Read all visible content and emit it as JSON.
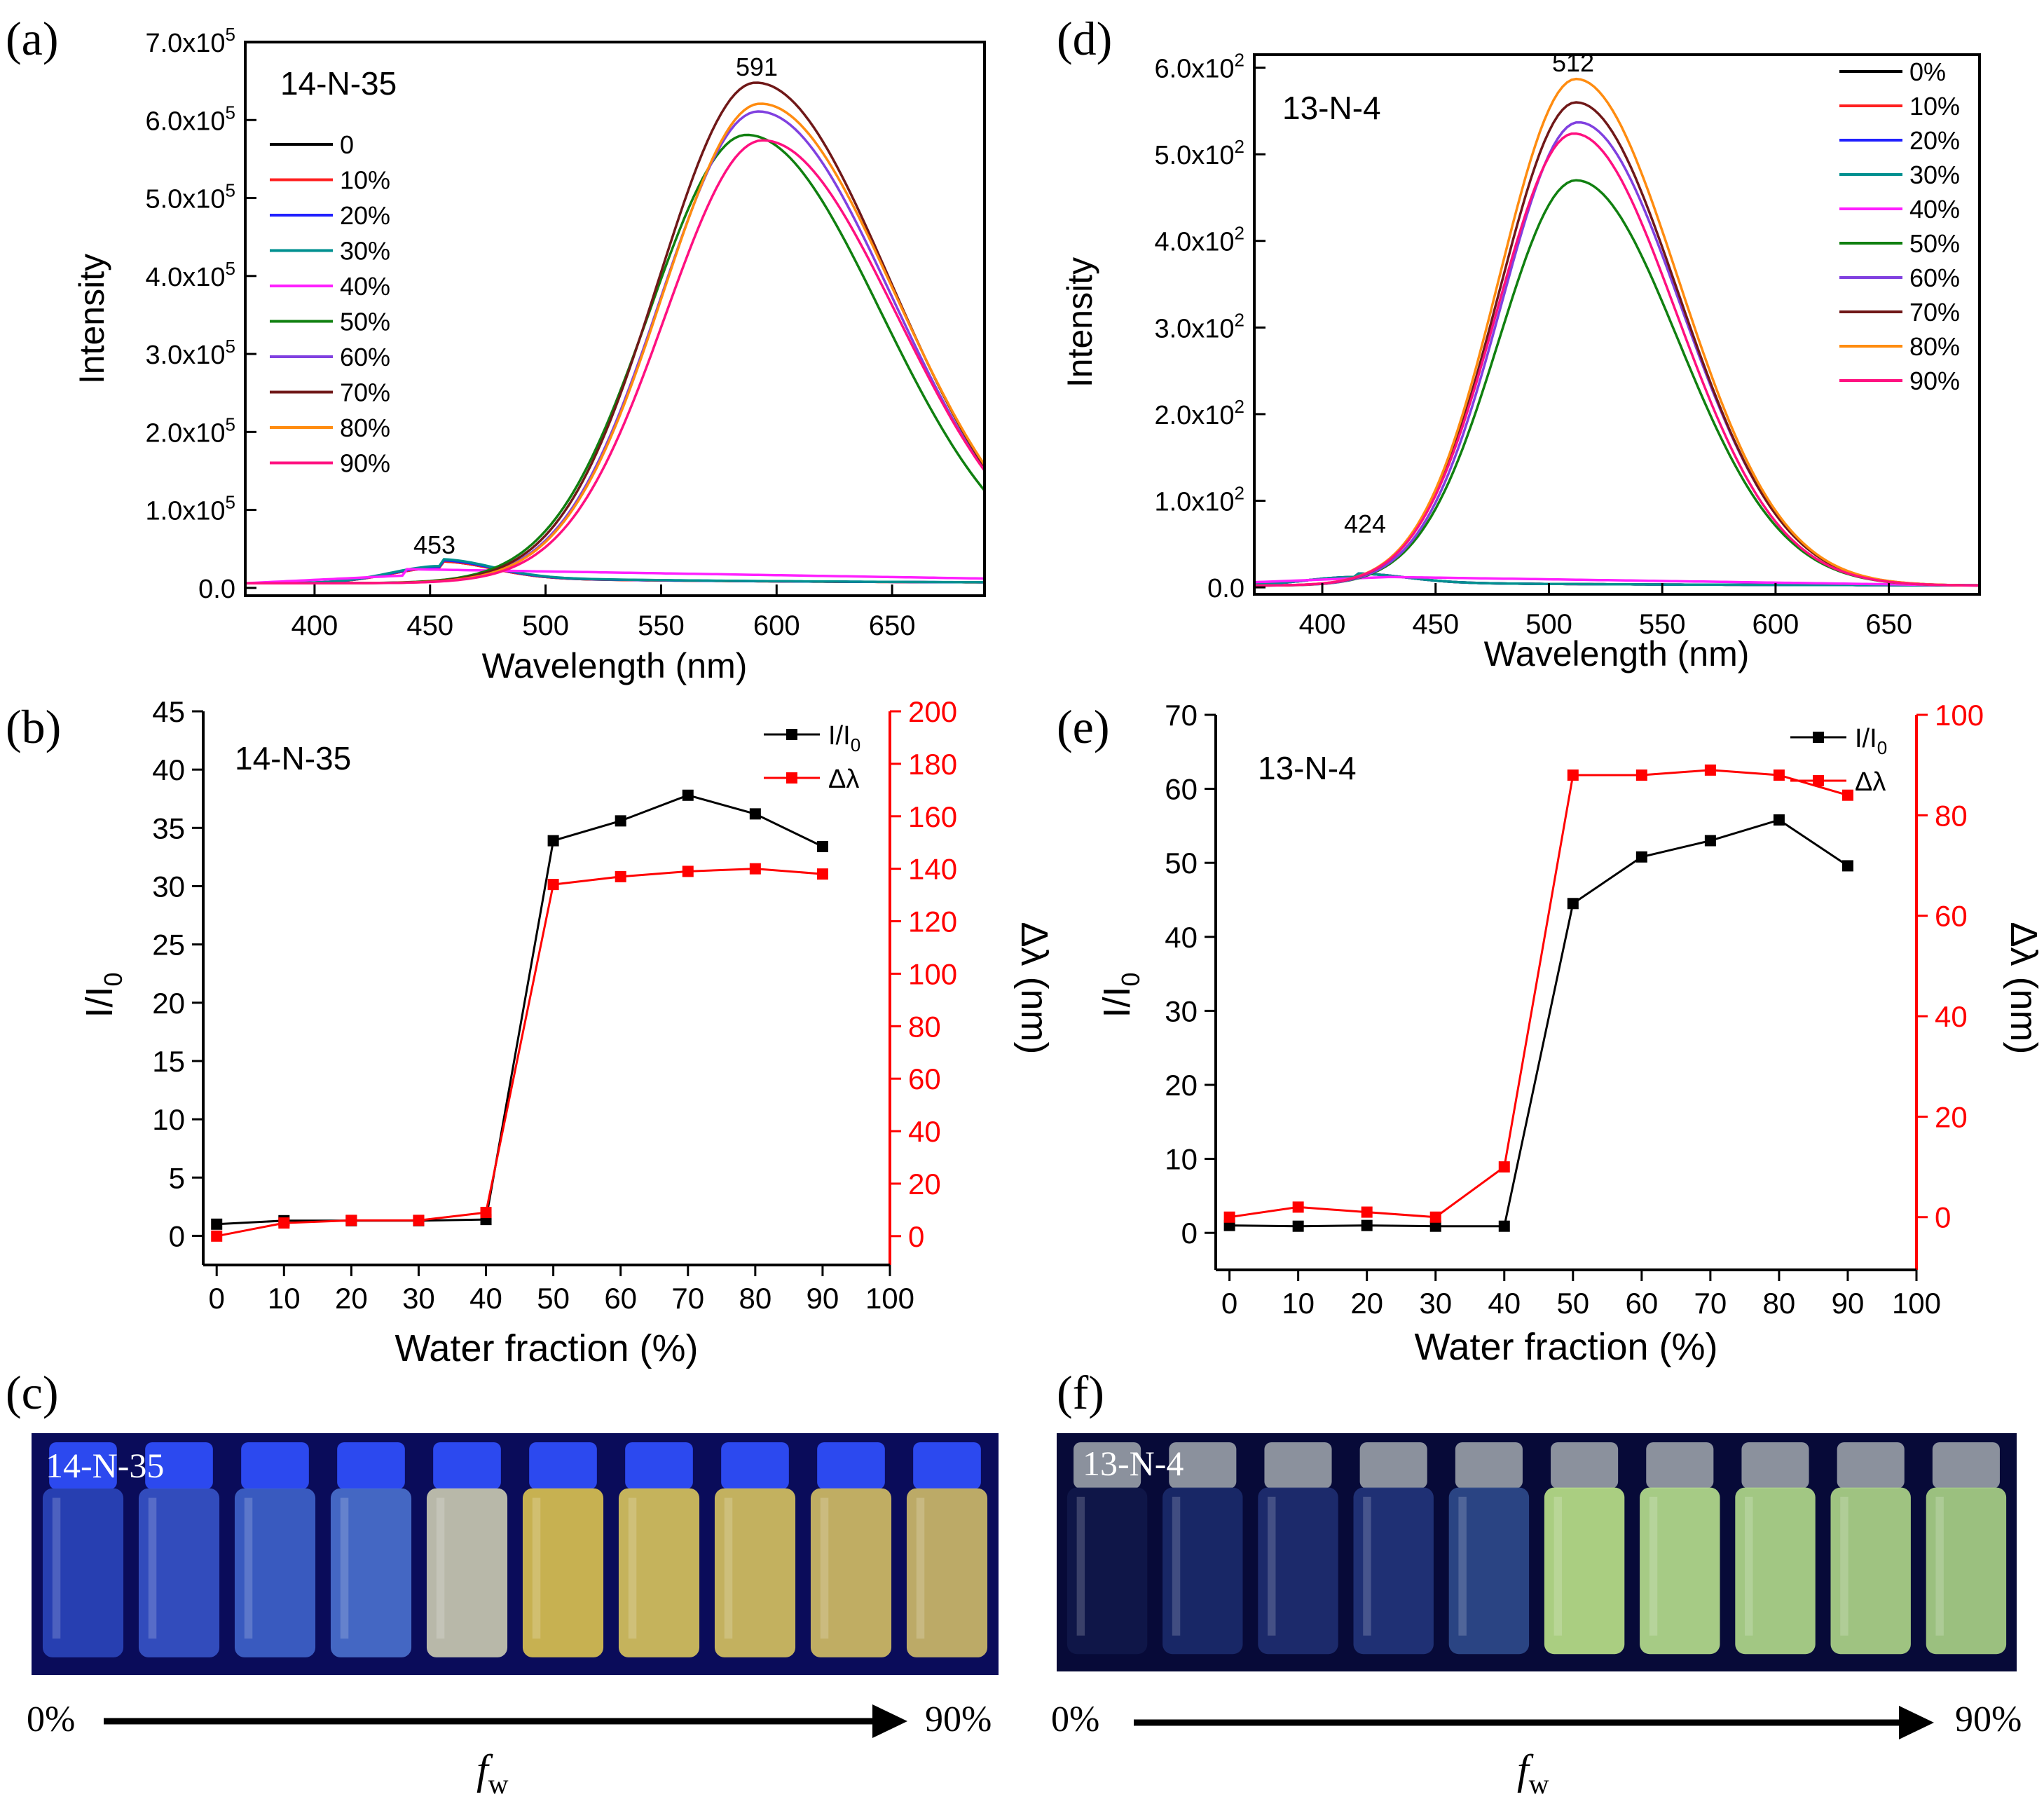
{
  "panel_labels": {
    "a": "(a)",
    "b": "(b)",
    "c": "(c)",
    "d": "(d)",
    "e": "(e)",
    "f": "(f)"
  },
  "chart_data": [
    {
      "id": "a",
      "type": "line",
      "sample": "14-N-35",
      "xlabel": "Wavelength (nm)",
      "ylabel": "Intensity",
      "xlim": [
        370,
        690
      ],
      "ylim": [
        -0.1,
        7.0
      ],
      "xticks": [
        400,
        450,
        500,
        550,
        600,
        650
      ],
      "yticks": [
        {
          "v": 0,
          "label": "0.0"
        },
        {
          "v": 1,
          "label": "1.0x10",
          "exp": "5"
        },
        {
          "v": 2,
          "label": "2.0x10",
          "exp": "5"
        },
        {
          "v": 3,
          "label": "3.0x10",
          "exp": "5"
        },
        {
          "v": 4,
          "label": "4.0x10",
          "exp": "5"
        },
        {
          "v": 5,
          "label": "5.0x10",
          "exp": "5"
        },
        {
          "v": 6,
          "label": "6.0x10",
          "exp": "5"
        },
        {
          "v": 7,
          "label": "7.0x10",
          "exp": "5"
        }
      ],
      "y_unit_note": "values in units of 10^5",
      "annotations": [
        {
          "text": "591",
          "x": 591,
          "y": 6.45
        },
        {
          "text": "453",
          "x": 453,
          "y": 0.35
        }
      ],
      "series": [
        {
          "name": "0",
          "color": "#000000",
          "kind": "low",
          "peak": 0.2
        },
        {
          "name": "10%",
          "color": "#ff2020",
          "kind": "low",
          "peak": 0.2
        },
        {
          "name": "20%",
          "color": "#2020ff",
          "kind": "low",
          "peak": 0.21
        },
        {
          "name": "30%",
          "color": "#009090",
          "kind": "low",
          "peak": 0.22
        },
        {
          "name": "40%",
          "color": "#ff20ff",
          "kind": "flat",
          "peak": 0.24
        },
        {
          "name": "50%",
          "color": "#108010",
          "kind": "high",
          "peak": 5.75,
          "center": 587
        },
        {
          "name": "60%",
          "color": "#8040e0",
          "kind": "high",
          "peak": 6.05,
          "center": 592
        },
        {
          "name": "70%",
          "color": "#701818",
          "kind": "high",
          "peak": 6.42,
          "center": 591
        },
        {
          "name": "80%",
          "color": "#ff8c10",
          "kind": "high",
          "peak": 6.15,
          "center": 593
        },
        {
          "name": "90%",
          "color": "#ff1080",
          "kind": "high",
          "peak": 5.68,
          "center": 594
        }
      ]
    },
    {
      "id": "d",
      "type": "line",
      "sample": "13-N-4",
      "xlabel": "Wavelength (nm)",
      "ylabel": "Intensity",
      "xlim": [
        370,
        690
      ],
      "ylim": [
        -0.08,
        6.15
      ],
      "xticks": [
        400,
        450,
        500,
        550,
        600,
        650
      ],
      "yticks": [
        {
          "v": 0,
          "label": "0.0"
        },
        {
          "v": 1,
          "label": "1.0x10",
          "exp": "2"
        },
        {
          "v": 2,
          "label": "2.0x10",
          "exp": "2"
        },
        {
          "v": 3,
          "label": "3.0x10",
          "exp": "2"
        },
        {
          "v": 4,
          "label": "4.0x10",
          "exp": "2"
        },
        {
          "v": 5,
          "label": "5.0x10",
          "exp": "2"
        },
        {
          "v": 6,
          "label": "6.0x10",
          "exp": "2"
        }
      ],
      "y_unit_note": "values in units of 10^2",
      "annotations": [
        {
          "text": "512",
          "x": 512,
          "y": 5.95
        },
        {
          "text": "424",
          "x": 424,
          "y": 0.25
        }
      ],
      "series": [
        {
          "name": "0%",
          "color": "#000000",
          "kind": "low",
          "peak": 0.1
        },
        {
          "name": "10%",
          "color": "#ff2020",
          "kind": "low",
          "peak": 0.1
        },
        {
          "name": "20%",
          "color": "#2020ff",
          "kind": "low",
          "peak": 0.1
        },
        {
          "name": "30%",
          "color": "#009090",
          "kind": "low",
          "peak": 0.1
        },
        {
          "name": "40%",
          "color": "#ff20ff",
          "kind": "flat",
          "peak": 0.1
        },
        {
          "name": "50%",
          "color": "#108010",
          "kind": "high",
          "peak": 4.68,
          "center": 512
        },
        {
          "name": "60%",
          "color": "#8040e0",
          "kind": "high",
          "peak": 5.35,
          "center": 513
        },
        {
          "name": "70%",
          "color": "#701818",
          "kind": "high",
          "peak": 5.58,
          "center": 512
        },
        {
          "name": "80%",
          "color": "#ff8c10",
          "kind": "high",
          "peak": 5.85,
          "center": 512
        },
        {
          "name": "90%",
          "color": "#ff1080",
          "kind": "high",
          "peak": 5.22,
          "center": 511
        }
      ]
    },
    {
      "id": "b",
      "type": "line",
      "sample": "14-N-35",
      "xlabel": "Water fraction (%)",
      "ylabel": "I/I",
      "ylabel_sub": "0",
      "y2label": "Δλ (nm)",
      "x": [
        0,
        10,
        20,
        30,
        40,
        50,
        60,
        70,
        80,
        90
      ],
      "xlim": [
        -2,
        100
      ],
      "xticks": [
        0,
        10,
        20,
        30,
        40,
        50,
        60,
        70,
        80,
        90,
        100
      ],
      "ylim": [
        -2.5,
        45
      ],
      "yticks": [
        0,
        5,
        10,
        15,
        20,
        25,
        30,
        35,
        40,
        45
      ],
      "y2lim": [
        -11,
        200
      ],
      "y2ticks": [
        0,
        20,
        40,
        60,
        80,
        100,
        120,
        140,
        160,
        180,
        200
      ],
      "legend": [
        {
          "label": "I/I",
          "sub": "0",
          "color": "#000000"
        },
        {
          "label": "Δλ",
          "sub": "",
          "color": "#ff0000"
        }
      ],
      "series": [
        {
          "name": "I/I0",
          "axis": "left",
          "color": "#000000",
          "values": [
            1.0,
            1.3,
            1.3,
            1.3,
            1.4,
            33.9,
            35.6,
            37.8,
            36.2,
            33.4
          ]
        },
        {
          "name": "Δλ",
          "axis": "right",
          "color": "#ff0000",
          "values": [
            0,
            5,
            6,
            6,
            9,
            134,
            137,
            139,
            140,
            138
          ]
        }
      ]
    },
    {
      "id": "e",
      "type": "line",
      "sample": "13-N-4",
      "xlabel": "Water fraction (%)",
      "ylabel": "I/I",
      "ylabel_sub": "0",
      "y2label": "Δλ (nm)",
      "x": [
        0,
        10,
        20,
        30,
        40,
        50,
        60,
        70,
        80,
        90
      ],
      "xlim": [
        -2,
        100
      ],
      "xticks": [
        0,
        10,
        20,
        30,
        40,
        50,
        60,
        70,
        80,
        90,
        100
      ],
      "ylim": [
        -5,
        70
      ],
      "yticks": [
        0,
        10,
        20,
        30,
        40,
        50,
        60,
        70
      ],
      "y2lim": [
        -10.5,
        100
      ],
      "y2ticks": [
        0,
        20,
        40,
        60,
        80,
        100
      ],
      "legend": [
        {
          "label": "I/I",
          "sub": "0",
          "color": "#000000"
        },
        {
          "label": "Δλ",
          "sub": "",
          "color": "#ff0000"
        }
      ],
      "series": [
        {
          "name": "I/I0",
          "axis": "left",
          "color": "#000000",
          "values": [
            1.0,
            0.9,
            1.0,
            0.9,
            0.9,
            44.5,
            50.8,
            53.0,
            55.8,
            49.6
          ]
        },
        {
          "name": "Δλ",
          "axis": "right",
          "color": "#ff0000",
          "values": [
            0,
            2,
            1,
            0,
            10,
            88,
            88,
            89,
            88,
            84
          ]
        }
      ]
    }
  ],
  "photos": {
    "c": {
      "sample": "14-N-35",
      "start": "0%",
      "end": "90%",
      "axis_label": "f",
      "axis_sub": "w",
      "vials": [
        "#2a44b8",
        "#3652c4",
        "#3e62c8",
        "#4a70cc",
        "#c8c8b0",
        "#d8c050",
        "#d6c25c",
        "#d4c060",
        "#d0bc64",
        "#ccb868"
      ]
    },
    "f": {
      "sample": "13-N-4",
      "start": "0%",
      "end": "90%",
      "axis_label": "f",
      "axis_sub": "w",
      "vials": [
        "#10184a",
        "#1a2a6a",
        "#1e2e70",
        "#22347a",
        "#2e4a8a",
        "#b8e088",
        "#b4dc8c",
        "#b0d88a",
        "#acd488",
        "#a8d086"
      ]
    }
  }
}
